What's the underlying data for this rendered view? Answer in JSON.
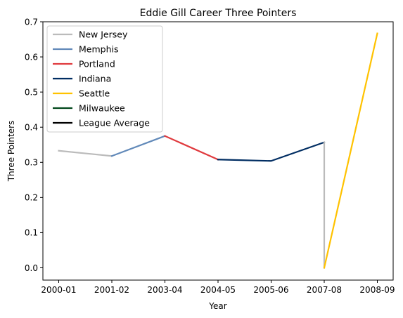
{
  "chart_data": {
    "type": "line",
    "title": "Eddie Gill Career Three Pointers",
    "xlabel": "Year",
    "ylabel": "Three Pointers",
    "categories": [
      "2000-01",
      "2001-02",
      "2003-04",
      "2004-05",
      "2005-06",
      "2007-08",
      "2008-09"
    ],
    "ylim": [
      -0.035,
      0.7
    ],
    "yticks": [
      0.0,
      0.1,
      0.2,
      0.3,
      0.4,
      0.5,
      0.6,
      0.7
    ],
    "ytick_labels": [
      "0.0",
      "0.1",
      "0.2",
      "0.3",
      "0.4",
      "0.5",
      "0.6",
      "0.7"
    ],
    "grid": false,
    "legend_position": "top-left",
    "series": [
      {
        "name": "New Jersey",
        "color": "#bbbbbb",
        "points": [
          [
            "2000-01",
            0.333
          ],
          [
            "2001-02",
            0.318
          ]
        ]
      },
      {
        "name": "Memphis",
        "color": "#6189b9",
        "points": [
          [
            "2001-02",
            0.318
          ],
          [
            "2003-04",
            0.375
          ]
        ]
      },
      {
        "name": "Portland",
        "color": "#e03a3e",
        "points": [
          [
            "2003-04",
            0.375
          ],
          [
            "2004-05",
            0.308
          ]
        ]
      },
      {
        "name": "Indiana",
        "color": "#002d62",
        "points": [
          [
            "2004-05",
            0.308
          ],
          [
            "2005-06",
            0.304
          ],
          [
            "2007-08",
            0.357
          ]
        ]
      },
      {
        "name": "New Jersey",
        "color": "#bbbbbb",
        "points": [
          [
            "2007-08",
            0.357
          ],
          [
            "2007-08",
            0.0
          ]
        ],
        "in_legend": false
      },
      {
        "name": "Seattle",
        "color": "#ffc200",
        "points": [
          [
            "2007-08",
            0.0
          ],
          [
            "2008-09",
            0.667
          ]
        ]
      },
      {
        "name": "Milwaukee",
        "color": "#00471b",
        "points": []
      },
      {
        "name": "League Average",
        "color": "#000000",
        "points": []
      }
    ],
    "legend": [
      {
        "name": "New Jersey",
        "color": "#bbbbbb"
      },
      {
        "name": "Memphis",
        "color": "#6189b9"
      },
      {
        "name": "Portland",
        "color": "#e03a3e"
      },
      {
        "name": "Indiana",
        "color": "#002d62"
      },
      {
        "name": "Seattle",
        "color": "#ffc200"
      },
      {
        "name": "Milwaukee",
        "color": "#00471b"
      },
      {
        "name": "League Average",
        "color": "#000000"
      }
    ]
  }
}
